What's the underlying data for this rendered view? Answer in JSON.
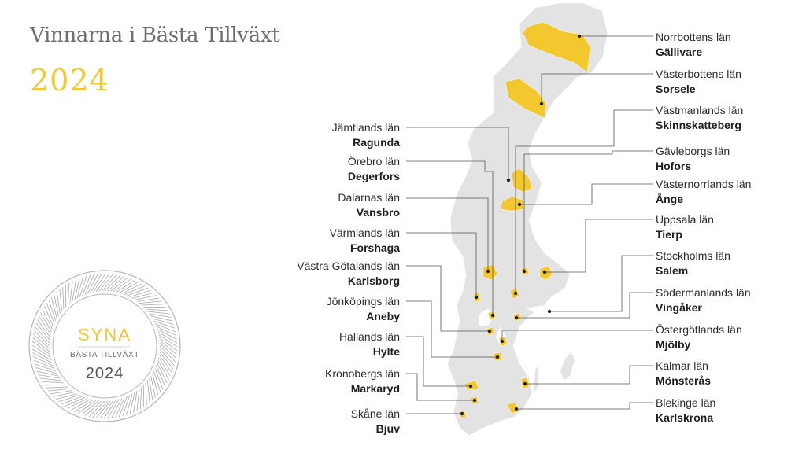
{
  "title": "Vinnarna i Bästa Tillväxt",
  "year": "2024",
  "seal": {
    "brand": "SYNA",
    "subtitle": "BÄSTA TILLVÄXT",
    "year": "2024"
  },
  "colors": {
    "accent": "#f2c82e",
    "land": "#e3e3e3",
    "text": "#2c2c2c",
    "title": "#6e6e6e"
  },
  "winners_right": [
    {
      "county": "Norrbottens län",
      "town": "Gällivare"
    },
    {
      "county": "Västerbottens län",
      "town": "Sorsele"
    },
    {
      "county": "Västmanlands län",
      "town": "Skinnskatteberg"
    },
    {
      "county": "Gävleborgs län",
      "town": "Hofors"
    },
    {
      "county": "Västernorrlands län",
      "town": "Ånge"
    },
    {
      "county": "Uppsala län",
      "town": "Tierp"
    },
    {
      "county": "Stockholms län",
      "town": "Salem"
    },
    {
      "county": "Södermanlands län",
      "town": "Vingåker"
    },
    {
      "county": "Östergötlands län",
      "town": "Mjölby"
    },
    {
      "county": "Kalmar län",
      "town": "Mönsterås"
    },
    {
      "county": "Blekinge län",
      "town": "Karlskrona"
    }
  ],
  "winners_left": [
    {
      "county": "Jämtlands län",
      "town": "Ragunda"
    },
    {
      "county": "Örebro län",
      "town": "Degerfors"
    },
    {
      "county": "Dalarnas län",
      "town": "Vansbro"
    },
    {
      "county": "Värmlands län",
      "town": "Forshaga"
    },
    {
      "county": "Västra Götalands län",
      "town": "Karlsborg"
    },
    {
      "county": "Jönköpings län",
      "town": "Aneby"
    },
    {
      "county": "Hallands län",
      "town": "Hylte"
    },
    {
      "county": "Kronobergs län",
      "town": "Markaryd"
    },
    {
      "county": "Skåne län",
      "town": "Bjuv"
    }
  ]
}
